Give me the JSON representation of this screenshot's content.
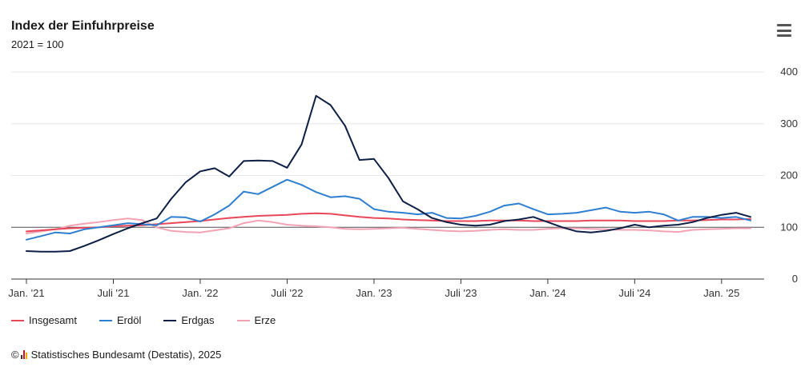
{
  "header": {
    "title": "Index der Einfuhrpreise",
    "subtitle": "2021 = 100"
  },
  "menu": {
    "icon": "hamburger-menu-icon"
  },
  "footer": {
    "copyright": "©",
    "source": "Statistisches Bundesamt (Destatis), 2025"
  },
  "chart_data": {
    "type": "line",
    "title": "Index der Einfuhrpreise",
    "subtitle": "2021 = 100",
    "xlabel": "",
    "ylabel": "",
    "ylim": [
      0,
      400
    ],
    "yticks": [
      0,
      100,
      200,
      300,
      400
    ],
    "reference_line": 100,
    "grid": true,
    "legend_position": "bottom-left",
    "x_start": "2021-01",
    "xtick_labels": [
      "Jan. '21",
      "Juli '21",
      "Jan. '22",
      "Juli '22",
      "Jan. '23",
      "Juli '23",
      "Jan. '24",
      "Juli '24",
      "Jan. '25"
    ],
    "xtick_index": [
      0,
      6,
      12,
      18,
      24,
      30,
      36,
      42,
      48
    ],
    "series": [
      {
        "name": "Insgesamt",
        "color": "#e8475a",
        "values": [
          92,
          94,
          96,
          98,
          99,
          100,
          102,
          103,
          104,
          106,
          108,
          110,
          112,
          115,
          118,
          120,
          122,
          123,
          124,
          126,
          127,
          126,
          123,
          120,
          118,
          117,
          115,
          114,
          113,
          112,
          112,
          112,
          113,
          113,
          113,
          112,
          112,
          112,
          112,
          113,
          113,
          113,
          112,
          112,
          112,
          113,
          113,
          114,
          115,
          115,
          116
        ]
      },
      {
        "name": "Erdöl",
        "color": "#2f7fd0",
        "values": [
          76,
          83,
          90,
          88,
          96,
          100,
          104,
          108,
          106,
          104,
          120,
          119,
          111,
          125,
          142,
          169,
          164,
          178,
          192,
          182,
          168,
          158,
          160,
          155,
          135,
          130,
          128,
          125,
          128,
          118,
          117,
          122,
          130,
          142,
          146,
          135,
          125,
          126,
          128,
          133,
          138,
          130,
          128,
          130,
          125,
          113,
          120,
          120,
          118,
          120,
          113
        ]
      },
      {
        "name": "Erdgas",
        "color": "#0d1f45",
        "values": [
          54,
          53,
          53,
          54,
          64,
          75,
          87,
          98,
          108,
          117,
          155,
          187,
          208,
          214,
          198,
          228,
          229,
          228,
          215,
          260,
          354,
          336,
          296,
          230,
          232,
          195,
          150,
          135,
          118,
          110,
          105,
          103,
          105,
          112,
          115,
          120,
          110,
          100,
          92,
          90,
          93,
          98,
          105,
          100,
          103,
          105,
          110,
          118,
          124,
          128,
          120
        ]
      },
      {
        "name": "Erze",
        "color": "#f2a3b3",
        "values": [
          88,
          92,
          96,
          103,
          107,
          110,
          114,
          117,
          114,
          100,
          93,
          91,
          90,
          94,
          98,
          108,
          113,
          110,
          105,
          103,
          102,
          100,
          97,
          96,
          97,
          98,
          99,
          97,
          95,
          93,
          92,
          93,
          95,
          96,
          95,
          95,
          97,
          98,
          98,
          97,
          96,
          95,
          95,
          94,
          92,
          91,
          95,
          96,
          97,
          98,
          98
        ]
      }
    ]
  }
}
